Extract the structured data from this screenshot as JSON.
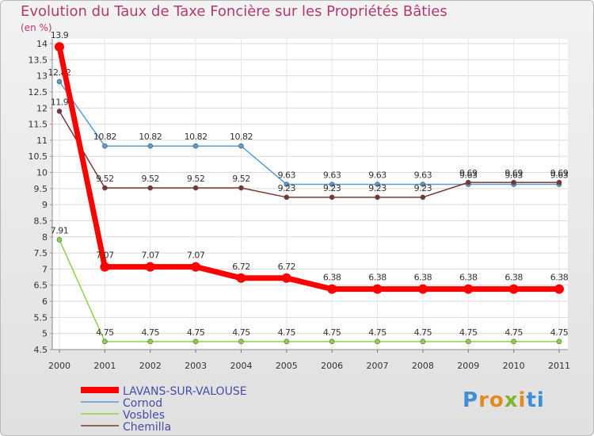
{
  "header": {
    "title": "Evolution du Taux de Taxe Foncière sur les Propriétés Bâties",
    "unit": "(en %)"
  },
  "logo": {
    "letters": [
      "P",
      "r",
      "o",
      "x",
      "i",
      "ti"
    ]
  },
  "chart_data": {
    "type": "line",
    "title": "Evolution du Taux de Taxe Foncière sur les Propriétés Bâties",
    "ylabel": "(en %)",
    "xlabel": "",
    "categories": [
      "2000",
      "2001",
      "2002",
      "2003",
      "2004",
      "2005",
      "2006",
      "2007",
      "2008",
      "2009",
      "2010",
      "2011"
    ],
    "ylim": [
      4.5,
      14
    ],
    "yticks": [
      "4.5",
      "5",
      "5.5",
      "6",
      "6.5",
      "7",
      "7.5",
      "8",
      "8.5",
      "9",
      "9.5",
      "10",
      "10.5",
      "11",
      "11.5",
      "12",
      "12.5",
      "13",
      "13.5",
      "14"
    ],
    "legend_position": "bottom-left",
    "series": [
      {
        "name": "Cornod",
        "color": "#5b9bd0",
        "values": [
          12.82,
          10.82,
          10.82,
          10.82,
          10.82,
          9.63,
          9.63,
          9.63,
          9.63,
          9.63,
          9.63,
          9.63
        ],
        "labels": [
          "12.82",
          "10.82",
          "10.82",
          "10.82",
          "10.82",
          "9.63",
          "9.63",
          "9.63",
          "9.63",
          "9.63",
          "9.63",
          "9.63"
        ]
      },
      {
        "name": "Vosbles",
        "color": "#8cd14a",
        "values": [
          7.91,
          4.75,
          4.75,
          4.75,
          4.75,
          4.75,
          4.75,
          4.75,
          4.75,
          4.75,
          4.75,
          4.75
        ],
        "labels": [
          "7.91",
          "4.75",
          "4.75",
          "4.75",
          "4.75",
          "4.75",
          "4.75",
          "4.75",
          "4.75",
          "4.75",
          "4.75",
          "4.75"
        ]
      },
      {
        "name": "Chemilla",
        "color": "#7a3535",
        "values": [
          11.9,
          9.52,
          9.52,
          9.52,
          9.52,
          9.23,
          9.23,
          9.23,
          9.23,
          9.69,
          9.69,
          9.69
        ],
        "labels": [
          "11.9",
          "9.52",
          "9.52",
          "9.52",
          "9.52",
          "9.23",
          "9.23",
          "9.23",
          "9.23",
          "9.69",
          "9.69",
          "9.69"
        ]
      },
      {
        "name": "LAVANS-SUR-VALOUSE",
        "color": "#ff0000",
        "highlight": true,
        "values": [
          13.9,
          7.07,
          7.07,
          7.07,
          6.72,
          6.72,
          6.38,
          6.38,
          6.38,
          6.38,
          6.38,
          6.38
        ],
        "labels": [
          "13.9",
          "7.07",
          "7.07",
          "7.07",
          "6.72",
          "6.72",
          "6.38",
          "6.38",
          "6.38",
          "6.38",
          "6.38",
          "6.38"
        ]
      }
    ],
    "legend_order": [
      "LAVANS-SUR-VALOUSE",
      "Cornod",
      "Vosbles",
      "Chemilla"
    ]
  }
}
